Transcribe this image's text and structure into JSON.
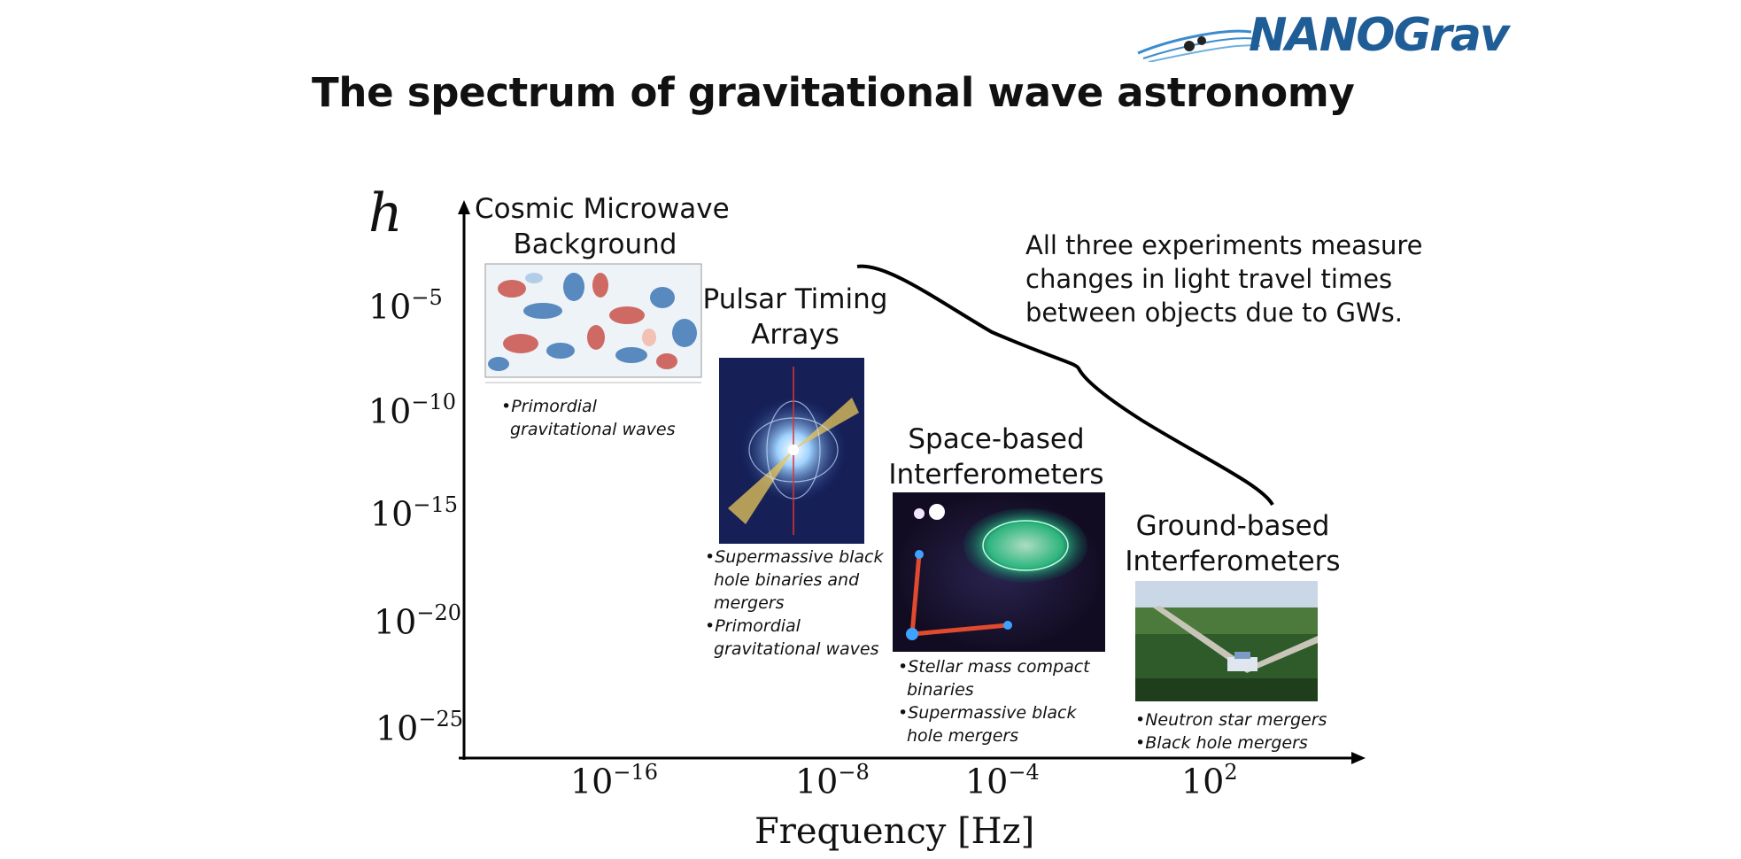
{
  "slide": {
    "title": "The spectrum of gravitational wave astronomy",
    "logo_text": "NANOGrav"
  },
  "axes": {
    "y_symbol": "h",
    "x_label": "Frequency [Hz]",
    "y_ticks": [
      {
        "base": "10",
        "exp": "−5"
      },
      {
        "base": "10",
        "exp": "−10"
      },
      {
        "base": "10",
        "exp": "−15"
      },
      {
        "base": "10",
        "exp": "−20"
      },
      {
        "base": "10",
        "exp": "−25"
      }
    ],
    "x_ticks": [
      {
        "base": "10",
        "exp": "−16"
      },
      {
        "base": "10",
        "exp": "−8"
      },
      {
        "base": "10",
        "exp": "−4"
      },
      {
        "base": "10",
        "exp": "2"
      }
    ]
  },
  "sources": {
    "cmb": {
      "title_line1": "Cosmic Microwave",
      "title_line2": "Background",
      "bullets": [
        "•Primordial gravitational waves"
      ]
    },
    "pta": {
      "title_line1": "Pulsar Timing",
      "title_line2": "Arrays",
      "bullets": [
        "•Supermassive black hole binaries and mergers",
        "•Primordial gravitational waves"
      ]
    },
    "space": {
      "title_line1": "Space-based",
      "title_line2": "Interferometers",
      "bullets": [
        "•Stellar mass compact binaries",
        "•Supermassive black hole mergers"
      ]
    },
    "ground": {
      "title_line1": "Ground-based",
      "title_line2": "Interferometers",
      "bullets": [
        "•Neutron star mergers",
        "•Black hole mergers"
      ]
    }
  },
  "note": {
    "line1": "All three experiments measure",
    "line2": "changes in light travel times",
    "line3": "between objects due to GWs."
  },
  "colors": {
    "logo_blue": "#1f5d97",
    "axis": "#000000"
  }
}
